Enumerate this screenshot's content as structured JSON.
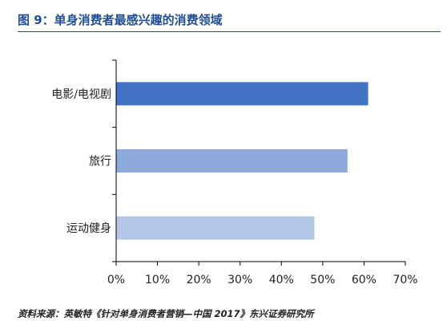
{
  "figure": {
    "title": "图 9：单身消费者最感兴趣的消费领域",
    "source": "资料来源：英敏特《针对单身消费者营销—中国 2017》东兴证券研究所"
  },
  "chart_data": {
    "type": "bar",
    "orientation": "horizontal",
    "categories": [
      "电影/电视剧",
      "旅行",
      "运动健身"
    ],
    "values": [
      61,
      56,
      48
    ],
    "value_unit": "%",
    "bar_colors": [
      "#4472c4",
      "#8eaadb",
      "#b4c7e7"
    ],
    "xlim": [
      0,
      70
    ],
    "xticks": [
      "0%",
      "10%",
      "20%",
      "30%",
      "40%",
      "50%",
      "60%",
      "70%"
    ],
    "grid": false,
    "legend": "none",
    "title": "",
    "xlabel": "",
    "ylabel": ""
  }
}
